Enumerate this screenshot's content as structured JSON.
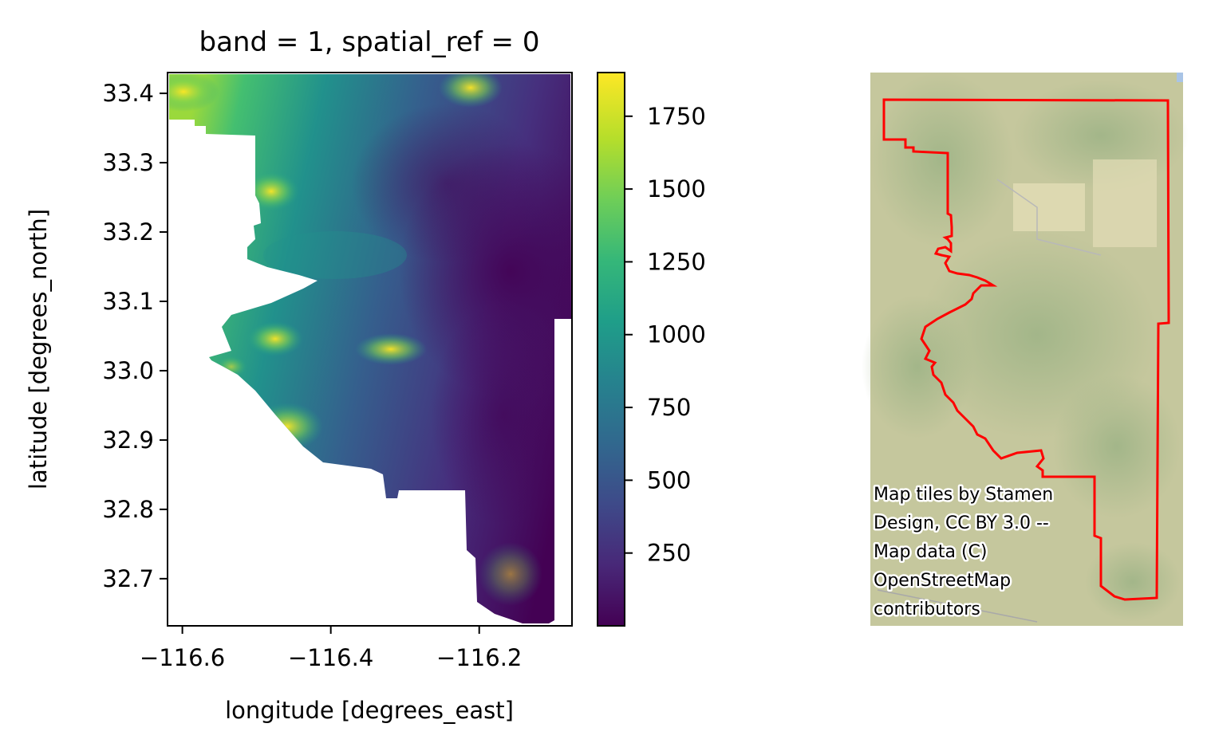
{
  "chart_data": [
    {
      "type": "heatmap",
      "title": "band = 1, spatial_ref = 0",
      "xlabel": "longitude [degrees_east]",
      "ylabel": "latitude [degrees_north]",
      "xlim": [
        -116.62,
        -116.075
      ],
      "ylim": [
        32.632,
        33.43
      ],
      "x_ticks": [
        -116.6,
        -116.4,
        -116.2
      ],
      "x_tick_labels": [
        "−116.6",
        "−116.4",
        "−116.2"
      ],
      "y_ticks": [
        32.7,
        32.8,
        32.9,
        33.0,
        33.1,
        33.2,
        33.3,
        33.4
      ],
      "y_tick_labels": [
        "32.7",
        "32.8",
        "32.9",
        "33.0",
        "33.1",
        "33.2",
        "33.3",
        "33.4"
      ],
      "colormap": "viridis",
      "colorbar": {
        "range": [
          0,
          1900
        ],
        "ticks": [
          250,
          500,
          750,
          1000,
          1250,
          1500,
          1750
        ],
        "tick_labels": [
          "250",
          "500",
          "750",
          "1000",
          "1250",
          "1500",
          "1750"
        ]
      },
      "grid": false
    },
    {
      "type": "map",
      "attribution": [
        "Map tiles by Stamen",
        "Design, CC BY 3.0 --",
        "Map data (C)",
        "OpenStreetMap",
        "contributors"
      ],
      "boundary_color": "#ff0000"
    }
  ],
  "colors": {
    "viridis": [
      "#440154",
      "#482878",
      "#3e4a89",
      "#31688e",
      "#26828e",
      "#1f9e89",
      "#35b779",
      "#6ece58",
      "#b5de2b",
      "#fde725"
    ],
    "map_base": "#c9c9a0",
    "boundary": "#ff0000"
  }
}
